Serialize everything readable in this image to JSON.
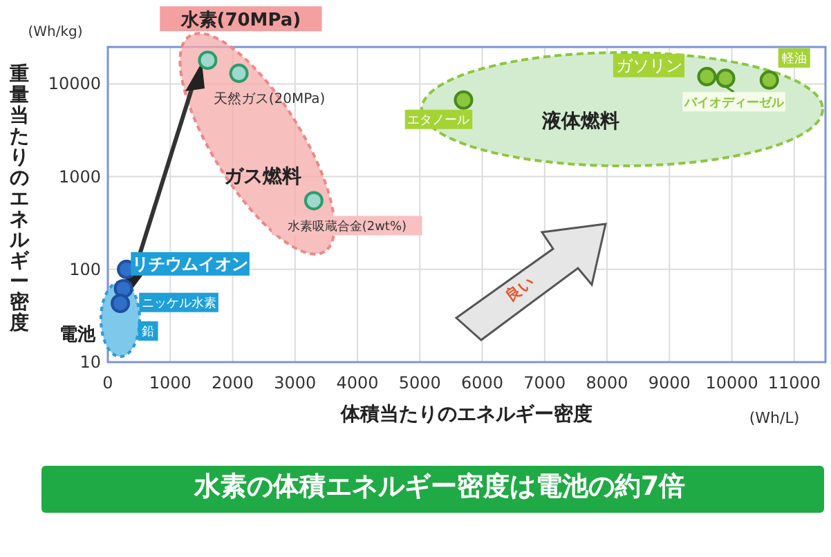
{
  "chart_data": {
    "type": "scatter",
    "xlabel": "体積当たりのエネルギー密度",
    "ylabel": "重量当たりのエネルギー密度",
    "log": "y",
    "grid": true,
    "marker": "circle",
    "xlim": [
      0,
      11500
    ],
    "ylim": [
      10,
      25000
    ],
    "xticks": [
      0,
      1000,
      2000,
      3000,
      4000,
      5000,
      6000,
      7000,
      8000,
      9000,
      10000,
      11000
    ],
    "yticks": [
      10,
      100,
      1000,
      10000
    ],
    "series": [
      {
        "name": "水素(70MPa)",
        "color": "#9fd8cc",
        "x": [
          1600
        ],
        "values": [
          18000
        ]
      },
      {
        "name": "天然ガス(20MPa)",
        "color": "#9fd8cc",
        "x": [
          2100
        ],
        "values": [
          13000
        ]
      },
      {
        "name": "水素吸蔵合金(2wt%)",
        "color": "#9fd8cc",
        "x": [
          3300
        ],
        "values": [
          550
        ]
      },
      {
        "name": "エタノール",
        "color": "#8cc63f",
        "x": [
          5700
        ],
        "values": [
          6700
        ]
      },
      {
        "name": "ガソリン",
        "color": "#8cc63f",
        "x": [
          9600
        ],
        "values": [
          12000
        ]
      },
      {
        "name": "バイオディーゼル",
        "color": "#8cc63f",
        "x": [
          9900
        ],
        "values": [
          11500
        ]
      },
      {
        "name": "軽油",
        "color": "#8cc63f",
        "x": [
          10600
        ],
        "values": [
          11000
        ]
      },
      {
        "name": "リチウムイオン",
        "color": "#2f6fc8",
        "x": [
          300
        ],
        "values": [
          100
        ]
      },
      {
        "name": "ニッケル水素",
        "color": "#2f6fc8",
        "x": [
          250
        ],
        "values": [
          62
        ]
      },
      {
        "name": "鉛",
        "color": "#2f6fc8",
        "x": [
          200
        ],
        "values": [
          43
        ]
      }
    ],
    "annotations": [
      "ガス燃料",
      "液体燃料",
      "電池",
      "良い",
      "(Wh/kg)",
      "(Wh/L)",
      "水素の体積エネルギー密度は電池の約7倍"
    ]
  }
}
